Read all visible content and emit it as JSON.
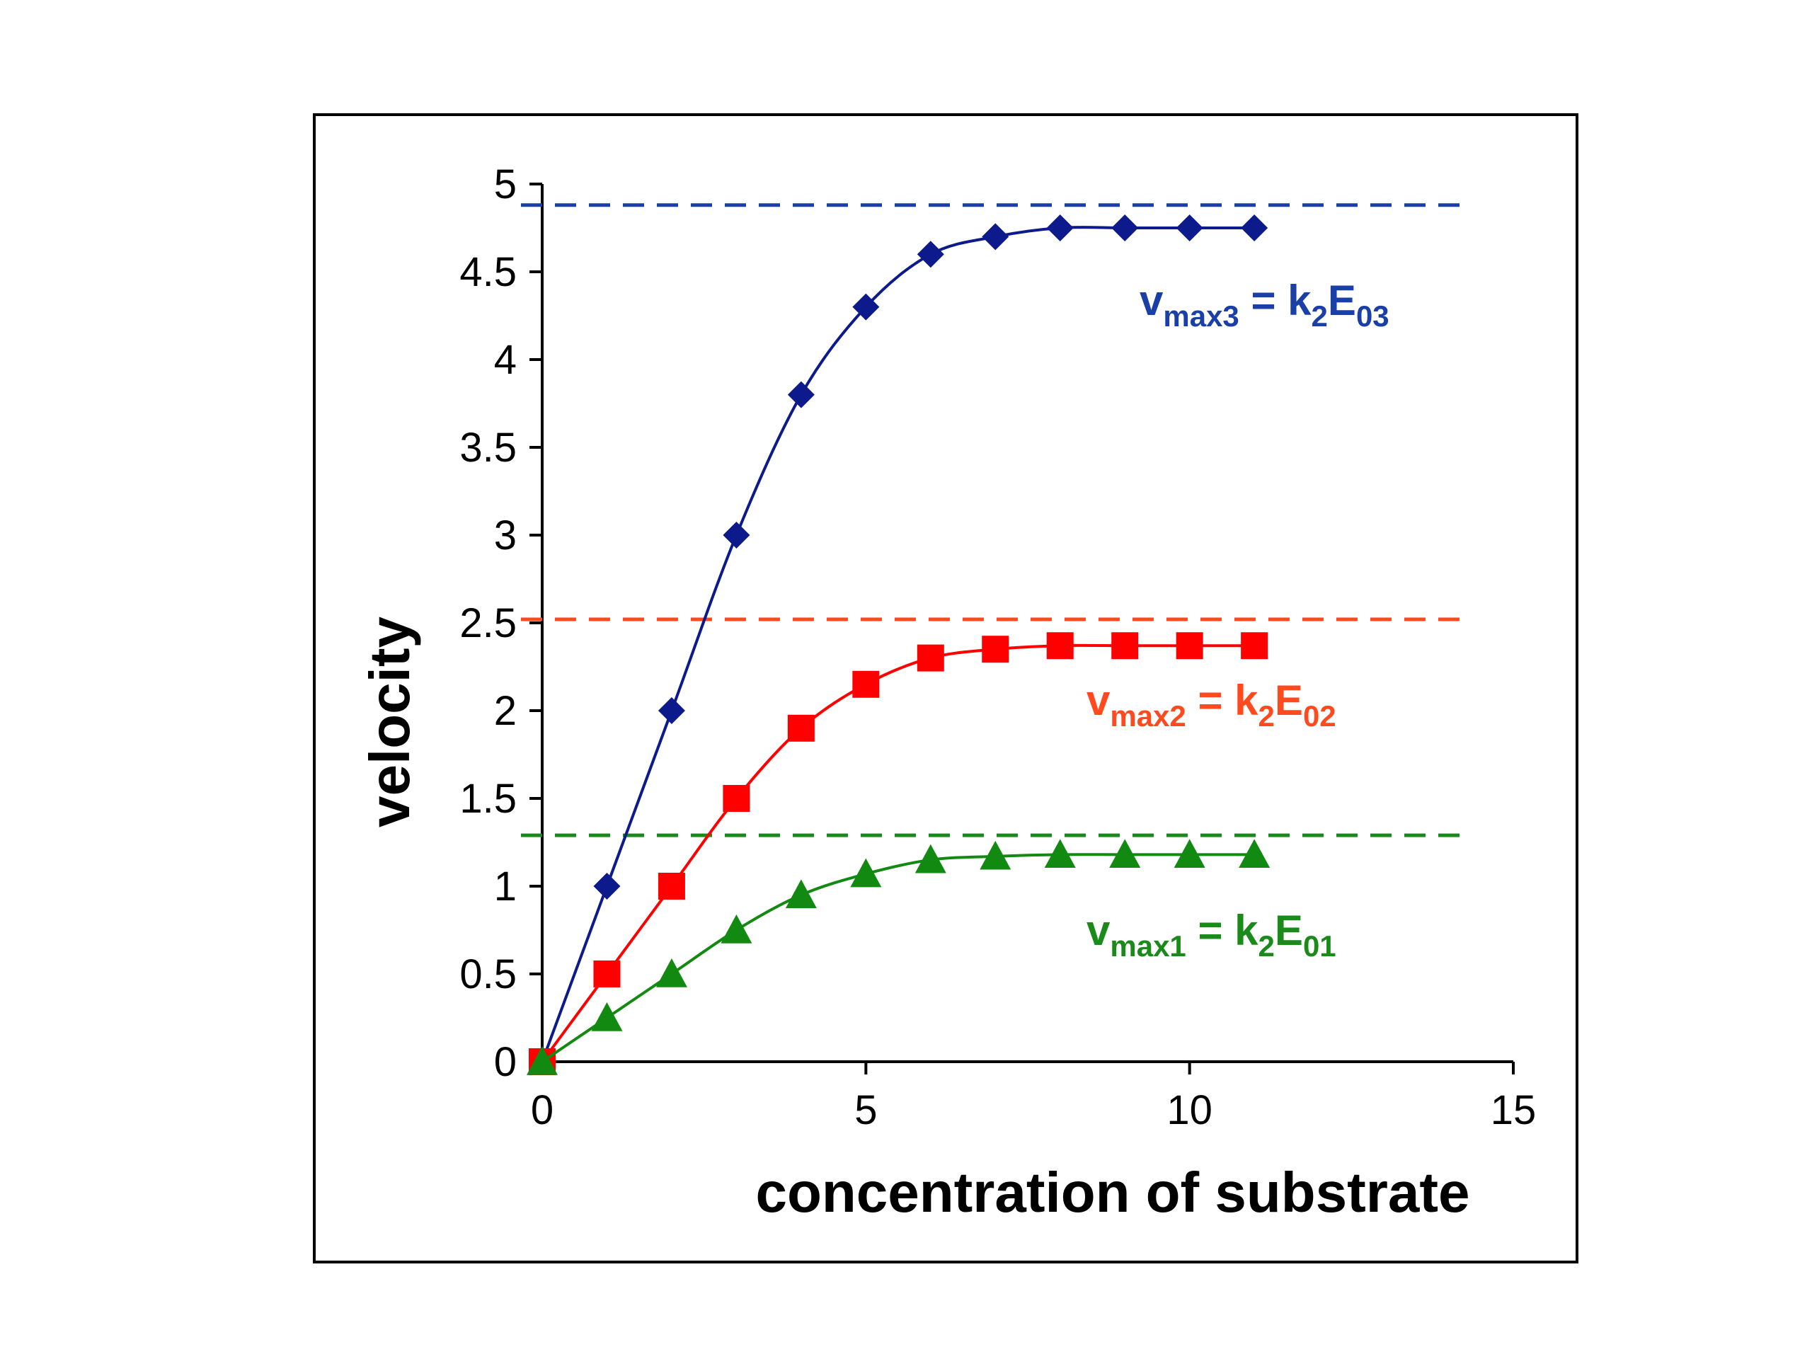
{
  "chart_data": {
    "type": "line",
    "xlabel": "concentration of substrate",
    "ylabel": "velocity",
    "xlim": [
      0,
      15
    ],
    "ylim": [
      0,
      5
    ],
    "xticks": [
      "0",
      "5",
      "10",
      "15"
    ],
    "yticks": [
      "0",
      "0.5",
      "1",
      "1.5",
      "2",
      "2.5",
      "3",
      "3.5",
      "4",
      "4.5",
      "5"
    ],
    "grid": false,
    "series": [
      {
        "key": "s3",
        "marker": "diamond",
        "color": "#0d1a8c",
        "x": [
          0,
          1,
          2,
          3,
          4,
          5,
          6,
          7,
          8,
          9,
          10,
          11
        ],
        "values": [
          0,
          1.0,
          2.0,
          3.0,
          3.8,
          4.3,
          4.6,
          4.7,
          4.75,
          4.75,
          4.75,
          4.75
        ]
      },
      {
        "key": "s2",
        "marker": "square",
        "color": "#ff0000",
        "x": [
          0,
          1,
          2,
          3,
          4,
          5,
          6,
          7,
          8,
          9,
          10,
          11
        ],
        "values": [
          0,
          0.5,
          1.0,
          1.5,
          1.9,
          2.15,
          2.3,
          2.35,
          2.37,
          2.37,
          2.37,
          2.37
        ]
      },
      {
        "key": "s1",
        "marker": "triangle",
        "color": "#128a12",
        "x": [
          0,
          1,
          2,
          3,
          4,
          5,
          6,
          7,
          8,
          9,
          10,
          11
        ],
        "values": [
          0,
          0.25,
          0.5,
          0.75,
          0.95,
          1.07,
          1.15,
          1.17,
          1.18,
          1.18,
          1.18,
          1.18
        ]
      }
    ],
    "reference_lines": [
      {
        "key": "vmax3",
        "y": 4.88,
        "color": "#1a3fa6"
      },
      {
        "key": "vmax2",
        "y": 2.52,
        "color": "#ff4a1f"
      },
      {
        "key": "vmax1",
        "y": 1.29,
        "color": "#1a8a1a"
      }
    ],
    "annotations": [
      {
        "key": "vmax3",
        "color": "#1a3fa6",
        "v": "v",
        "sub1": "max3",
        "mid": " = k",
        "sub2": "2",
        "e": "E",
        "sub3": "03"
      },
      {
        "key": "vmax2",
        "color": "#ff4a1f",
        "v": "v",
        "sub1": "max2",
        "mid": " = k",
        "sub2": "2",
        "e": "E",
        "sub3": "02"
      },
      {
        "key": "vmax1",
        "color": "#1a8a1a",
        "v": "v",
        "sub1": "max1",
        "mid": " = k",
        "sub2": "2",
        "e": "E",
        "sub3": "01"
      }
    ]
  }
}
